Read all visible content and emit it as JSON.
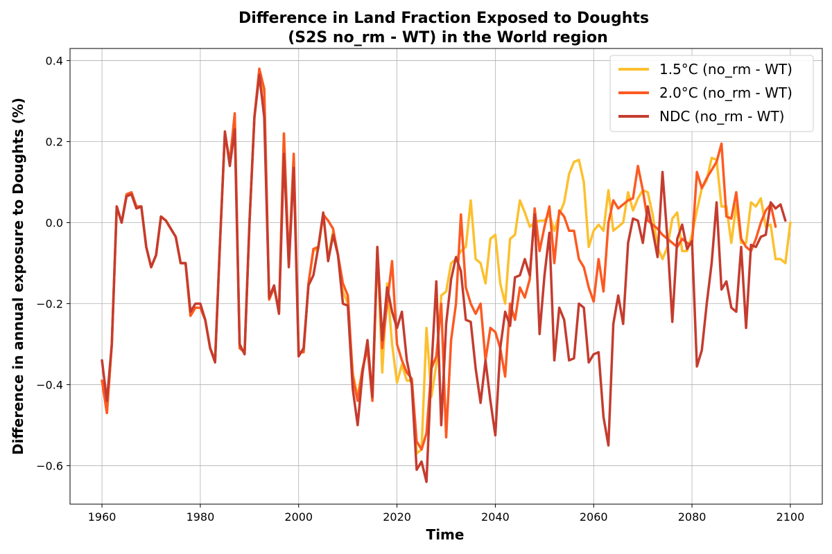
{
  "chart_data": {
    "type": "line",
    "title": "Difference in Land Fraction Exposed to Doughts",
    "subtitle": "(S2S no_rm - WT) in the World region",
    "xlabel": "Time",
    "ylabel": "Difference in annual exposure to Doughts (%)",
    "xlim": [
      1953.5,
      2106.5
    ],
    "ylim": [
      -0.695,
      0.43
    ],
    "xticks": [
      1960,
      1980,
      2000,
      2020,
      2040,
      2060,
      2080,
      2100
    ],
    "yticks": [
      -0.6,
      -0.4,
      -0.2,
      0.0,
      0.2,
      0.4
    ],
    "ytick_labels": [
      "−0.6",
      "−0.4",
      "−0.2",
      "0.0",
      "0.2",
      "0.4"
    ],
    "grid": true,
    "legend_position": "top-right",
    "x_start": 1960,
    "x_end": 2100,
    "series": [
      {
        "name": "1.5°C (no_rm - WT)",
        "color": "#fcc02e",
        "values": [
          -0.39,
          -0.47,
          -0.3,
          0.04,
          0.0,
          0.07,
          0.075,
          0.04,
          0.04,
          -0.06,
          -0.11,
          -0.08,
          0.015,
          0.005,
          -0.015,
          -0.035,
          -0.1,
          -0.1,
          -0.23,
          -0.21,
          -0.21,
          -0.24,
          -0.31,
          -0.34,
          -0.05,
          0.22,
          0.15,
          0.26,
          -0.31,
          -0.32,
          0.0,
          0.26,
          0.37,
          0.32,
          -0.19,
          -0.16,
          -0.22,
          0.22,
          -0.1,
          0.16,
          -0.32,
          -0.32,
          -0.15,
          -0.07,
          -0.065,
          0.02,
          -0.09,
          -0.02,
          -0.08,
          -0.17,
          -0.2,
          -0.37,
          -0.43,
          -0.36,
          -0.3,
          -0.43,
          -0.06,
          -0.37,
          -0.15,
          -0.3,
          -0.395,
          -0.35,
          -0.39,
          -0.39,
          -0.57,
          -0.56,
          -0.26,
          -0.43,
          -0.35,
          -0.18,
          -0.17,
          -0.1,
          -0.09,
          -0.07,
          -0.06,
          0.055,
          -0.09,
          -0.1,
          -0.15,
          -0.04,
          -0.03,
          -0.15,
          -0.2,
          -0.04,
          -0.03,
          0.055,
          0.025,
          -0.01,
          0.0,
          0.005,
          0.005,
          0.02,
          -0.02,
          0.02,
          0.05,
          0.12,
          0.15,
          0.155,
          0.1,
          -0.06,
          -0.02,
          -0.005,
          -0.02,
          0.08,
          -0.02,
          -0.01,
          0.0,
          0.075,
          0.03,
          0.06,
          0.08,
          0.075,
          0.02,
          -0.06,
          -0.09,
          -0.06,
          0.01,
          0.025,
          -0.07,
          -0.07,
          -0.03,
          0.03,
          0.085,
          0.105,
          0.16,
          0.155,
          0.04,
          0.04,
          -0.05,
          0.045,
          -0.05,
          -0.05,
          0.05,
          0.04,
          0.06,
          -0.01,
          -0.005,
          -0.09,
          -0.09,
          -0.1,
          0.0
        ]
      },
      {
        "name": "2.0°C (no_rm - WT)",
        "color": "#fc5a22",
        "values": [
          -0.39,
          -0.47,
          -0.3,
          0.04,
          0.0,
          0.07,
          0.075,
          0.04,
          0.04,
          -0.06,
          -0.11,
          -0.08,
          0.015,
          0.005,
          -0.015,
          -0.035,
          -0.1,
          -0.1,
          -0.23,
          -0.21,
          -0.21,
          -0.24,
          -0.31,
          -0.34,
          -0.05,
          0.22,
          0.15,
          0.27,
          -0.31,
          -0.32,
          0.0,
          0.26,
          0.38,
          0.33,
          -0.19,
          -0.16,
          -0.22,
          0.22,
          -0.1,
          0.17,
          -0.32,
          -0.32,
          -0.15,
          -0.065,
          -0.06,
          0.02,
          0.005,
          -0.015,
          -0.08,
          -0.15,
          -0.18,
          -0.38,
          -0.44,
          -0.36,
          -0.31,
          -0.44,
          -0.07,
          -0.31,
          -0.2,
          -0.095,
          -0.3,
          -0.34,
          -0.37,
          -0.385,
          -0.54,
          -0.56,
          -0.52,
          -0.36,
          -0.33,
          -0.2,
          -0.53,
          -0.29,
          -0.2,
          0.02,
          -0.16,
          -0.2,
          -0.225,
          -0.2,
          -0.34,
          -0.26,
          -0.27,
          -0.31,
          -0.38,
          -0.2,
          -0.24,
          -0.16,
          -0.185,
          -0.14,
          0.035,
          -0.07,
          -0.01,
          0.04,
          -0.1,
          0.03,
          0.015,
          -0.02,
          -0.02,
          -0.09,
          -0.11,
          -0.16,
          -0.195,
          -0.09,
          -0.17,
          0.0,
          0.055,
          0.035,
          0.045,
          0.055,
          0.06,
          0.14,
          0.08,
          0.005,
          -0.005,
          -0.015,
          -0.03,
          -0.04,
          -0.05,
          -0.06,
          -0.04,
          -0.05,
          -0.055,
          0.125,
          0.085,
          0.11,
          0.13,
          0.15,
          0.195,
          0.015,
          0.01,
          0.075,
          -0.04,
          -0.06,
          -0.07,
          -0.04,
          0.0,
          0.03,
          0.045,
          -0.01
        ]
      },
      {
        "name": "NDC (no_rm - WT)",
        "color": "#c43c2f",
        "values": [
          -0.34,
          -0.44,
          -0.3,
          0.04,
          0.0,
          0.065,
          0.07,
          0.035,
          0.04,
          -0.06,
          -0.11,
          -0.08,
          0.015,
          0.005,
          -0.015,
          -0.035,
          -0.1,
          -0.1,
          -0.22,
          -0.2,
          -0.2,
          -0.24,
          -0.31,
          -0.345,
          -0.05,
          0.225,
          0.14,
          0.23,
          -0.3,
          -0.325,
          0.0,
          0.26,
          0.365,
          0.26,
          -0.185,
          -0.155,
          -0.225,
          0.17,
          -0.11,
          0.135,
          -0.33,
          -0.31,
          -0.155,
          -0.13,
          -0.06,
          0.025,
          -0.095,
          -0.03,
          -0.08,
          -0.2,
          -0.205,
          -0.41,
          -0.5,
          -0.37,
          -0.29,
          -0.43,
          -0.06,
          -0.29,
          -0.16,
          -0.22,
          -0.26,
          -0.22,
          -0.34,
          -0.4,
          -0.61,
          -0.59,
          -0.64,
          -0.36,
          -0.145,
          -0.5,
          -0.25,
          -0.14,
          -0.085,
          -0.12,
          -0.24,
          -0.245,
          -0.36,
          -0.445,
          -0.34,
          -0.44,
          -0.525,
          -0.31,
          -0.22,
          -0.255,
          -0.135,
          -0.13,
          -0.09,
          -0.13,
          0.02,
          -0.275,
          -0.13,
          -0.025,
          -0.34,
          -0.21,
          -0.24,
          -0.34,
          -0.335,
          -0.2,
          -0.21,
          -0.345,
          -0.325,
          -0.32,
          -0.48,
          -0.55,
          -0.25,
          -0.18,
          -0.25,
          -0.05,
          0.01,
          0.005,
          -0.05,
          0.04,
          -0.02,
          -0.085,
          0.125,
          -0.04,
          -0.245,
          -0.04,
          -0.005,
          -0.065,
          -0.045,
          -0.355,
          -0.315,
          -0.2,
          -0.1,
          0.05,
          -0.165,
          -0.145,
          -0.21,
          -0.22,
          -0.06,
          -0.26,
          -0.055,
          -0.06,
          -0.035,
          -0.03,
          0.05,
          0.035,
          0.045,
          0.005
        ]
      }
    ]
  }
}
